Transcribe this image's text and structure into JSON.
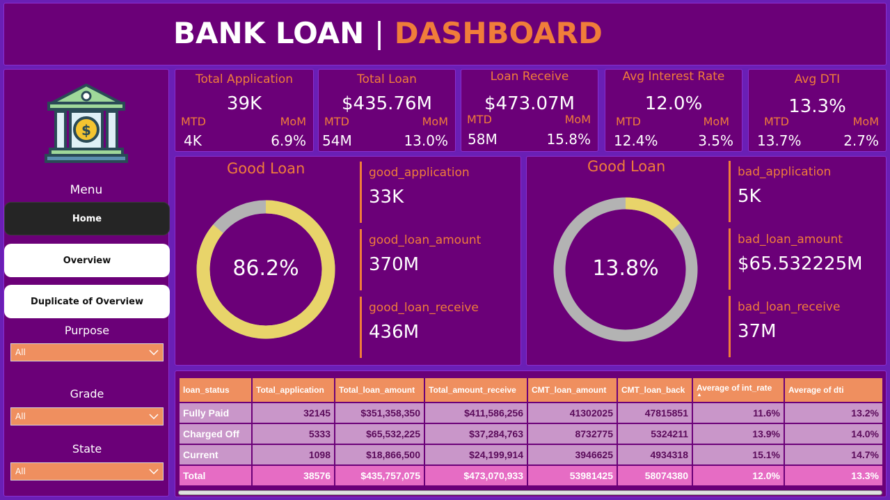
{
  "header": {
    "title_main": "BANK LOAN",
    "title_sep": "|",
    "title_accent": "DASHBOARD"
  },
  "sidebar": {
    "logo_icon": "bank-icon",
    "menu_title": "Menu",
    "nav": [
      {
        "label": "Home"
      },
      {
        "label": "Overview"
      },
      {
        "label": "Duplicate of Overview"
      }
    ],
    "filters": [
      {
        "label": "Purpose",
        "value": "All"
      },
      {
        "label": "Grade",
        "value": "All"
      },
      {
        "label": "State",
        "value": "All"
      }
    ]
  },
  "kpis": [
    {
      "title": "Total Application",
      "value": "39K",
      "mtd_label": "MTD",
      "mom_label": "MoM",
      "mtd": "4K",
      "mom": "6.9%"
    },
    {
      "title": "Total Loan",
      "value": "$435.76M",
      "mtd_label": "MTD",
      "mom_label": "MoM",
      "mtd": "54M",
      "mom": "13.0%"
    },
    {
      "title": "Loan Receive",
      "value": "$473.07M",
      "mtd_label": "MTD",
      "mom_label": "MoM",
      "mtd": "58M",
      "mom": "15.8%"
    },
    {
      "title": "Avg Interest Rate",
      "value": "12.0%",
      "mtd_label": "MTD",
      "mom_label": "MoM",
      "mtd": "12.4%",
      "mom": "3.5%"
    },
    {
      "title": "Avg DTI",
      "value": "13.3%",
      "mtd_label": "MTD",
      "mom_label": "MoM",
      "mtd": "13.7%",
      "mom": "2.7%"
    }
  ],
  "good_loan": {
    "title": "Good Loan",
    "pct_label": "86.2%",
    "pct": 86.2,
    "color_main": "#e8d46a",
    "color_rest": "#b3b3b3",
    "metrics": [
      {
        "label": "good_application",
        "value": "33K"
      },
      {
        "label": "good_loan_amount",
        "value": "370M"
      },
      {
        "label": "good_loan_receive",
        "value": "436M"
      }
    ]
  },
  "bad_loan": {
    "title": "Good Loan",
    "pct_label": "13.8%",
    "pct": 13.8,
    "color_main": "#e8d46a",
    "color_rest": "#b3b3b3",
    "metrics": [
      {
        "label": "bad_application",
        "value": "5K"
      },
      {
        "label": "bad_loan_amount",
        "value": "$65.532225M"
      },
      {
        "label": "bad_loan_receive",
        "value": "37M"
      }
    ]
  },
  "table": {
    "columns": [
      "loan_status",
      "Total_application",
      "Total_loan_amount",
      "Total_amount_receive",
      "CMT_loan_amount",
      "CMT_loan_back",
      "Average of int_rate",
      "Average of dti"
    ],
    "rows": [
      [
        "Fully Paid",
        "32145",
        "$351,358,350",
        "$411,586,256",
        "41302025",
        "47815851",
        "11.6%",
        "13.2%"
      ],
      [
        "Charged Off",
        "5333",
        "$65,532,225",
        "$37,284,763",
        "8732775",
        "5324211",
        "13.9%",
        "14.0%"
      ],
      [
        "Current",
        "1098",
        "$18,866,500",
        "$24,199,914",
        "3946625",
        "4934318",
        "15.1%",
        "14.7%"
      ]
    ],
    "total": [
      "Total",
      "38576",
      "$435,757,075",
      "$473,070,933",
      "53981425",
      "58074380",
      "12.0%",
      "13.3%"
    ]
  }
}
